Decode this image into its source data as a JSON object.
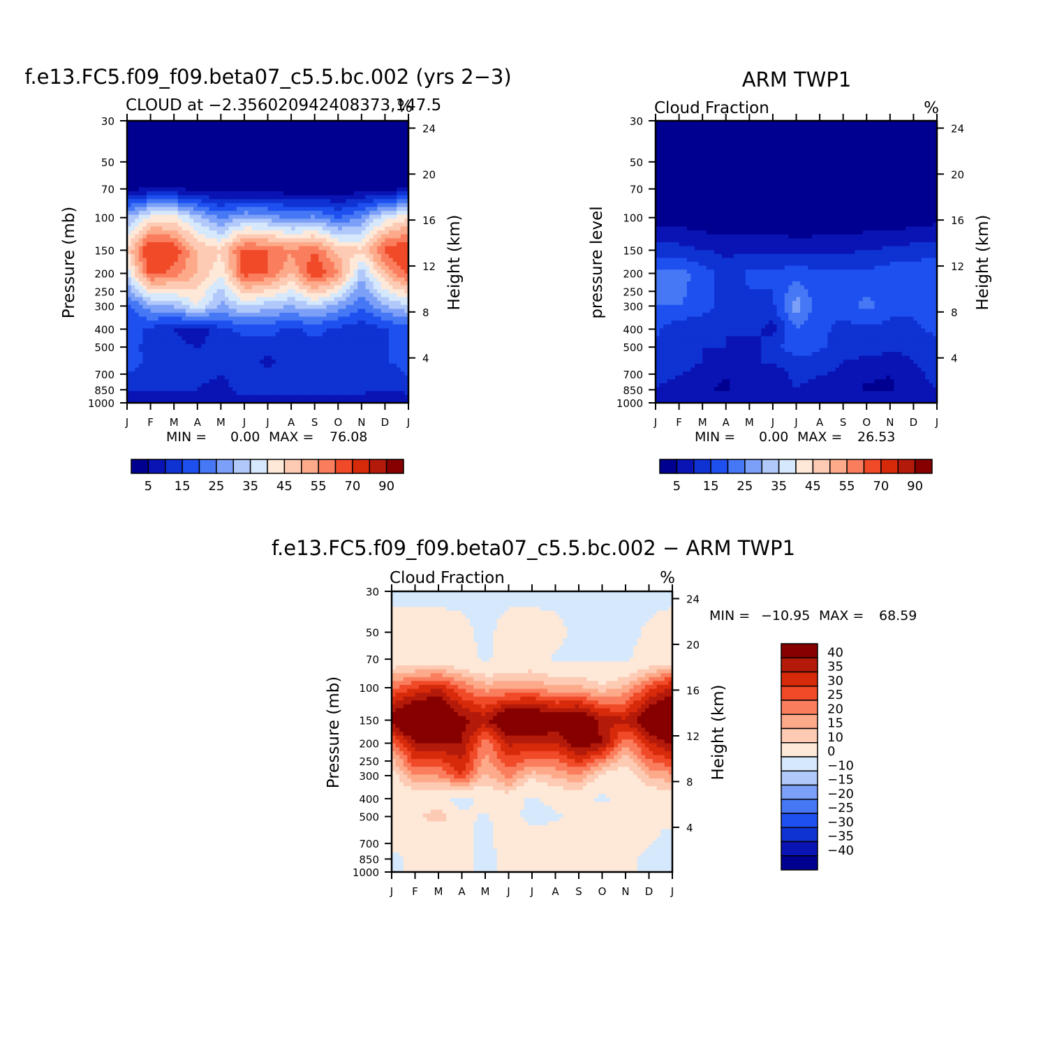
{
  "chart_data": [
    {
      "type": "heatmap",
      "panel": "model",
      "title": "f.e13.FC5.f09_f09.beta07_c5.5.bc.002 (yrs 2−3)",
      "subtitle": "CLOUD at −2.356020942408373,147.5",
      "units": "%",
      "ylabel": "Pressure (mb)",
      "ylabel_right": "Height (km)",
      "x": [
        "J",
        "F",
        "M",
        "A",
        "M",
        "J",
        "J",
        "A",
        "S",
        "O",
        "N",
        "D",
        "J"
      ],
      "y_ticks": [
        "30",
        "50",
        "70",
        "100",
        "150",
        "200",
        "250",
        "300",
        "400",
        "500",
        "700",
        "850",
        "1000"
      ],
      "y_right_ticks": [
        "24",
        "20",
        "16",
        "12",
        "8",
        "4"
      ],
      "y_levels_mb": [
        30,
        70,
        100,
        150,
        200,
        300,
        400,
        500,
        600,
        850,
        1000
      ],
      "values": [
        [
          0,
          0,
          0,
          0,
          0,
          0,
          0,
          0,
          0,
          0,
          0,
          0,
          0
        ],
        [
          4,
          5,
          5,
          4,
          2,
          2,
          2,
          1,
          1,
          1,
          2,
          4,
          5
        ],
        [
          30,
          42,
          42,
          32,
          24,
          30,
          28,
          24,
          26,
          20,
          26,
          38,
          44
        ],
        [
          45,
          68,
          64,
          50,
          46,
          62,
          60,
          56,
          60,
          48,
          46,
          62,
          66
        ],
        [
          36,
          62,
          58,
          50,
          40,
          62,
          60,
          50,
          65,
          56,
          32,
          50,
          62
        ],
        [
          18,
          28,
          30,
          40,
          28,
          36,
          32,
          30,
          34,
          28,
          20,
          30,
          34
        ],
        [
          18,
          14,
          10,
          6,
          14,
          16,
          16,
          14,
          16,
          14,
          12,
          14,
          18
        ],
        [
          16,
          14,
          12,
          10,
          12,
          14,
          14,
          14,
          14,
          14,
          10,
          14,
          18
        ],
        [
          18,
          14,
          14,
          14,
          14,
          14,
          8,
          14,
          14,
          14,
          14,
          14,
          18
        ],
        [
          10,
          10,
          10,
          10,
          6,
          14,
          14,
          14,
          12,
          12,
          12,
          10,
          12
        ],
        [
          5,
          5,
          5,
          5,
          5,
          5,
          5,
          5,
          5,
          5,
          5,
          5,
          5
        ]
      ],
      "min_label": "MIN =",
      "min_value": "0.00",
      "max_label": "MAX =",
      "max_value": "76.08"
    },
    {
      "type": "heatmap",
      "panel": "obs",
      "title": "ARM TWP1",
      "subtitle": "Cloud Fraction",
      "units": "%",
      "ylabel": "pressure level",
      "ylabel_right": "Height (km)",
      "x": [
        "J",
        "F",
        "M",
        "A",
        "M",
        "J",
        "J",
        "A",
        "S",
        "O",
        "N",
        "D",
        "J"
      ],
      "y_ticks": [
        "30",
        "50",
        "70",
        "100",
        "150",
        "200",
        "250",
        "300",
        "400",
        "500",
        "700",
        "850",
        "1000"
      ],
      "y_right_ticks": [
        "24",
        "20",
        "16",
        "12",
        "8",
        "4"
      ],
      "y_levels_mb": [
        30,
        70,
        100,
        150,
        200,
        300,
        400,
        500,
        600,
        850,
        1000
      ],
      "values": [
        [
          0,
          0,
          0,
          0,
          0,
          0,
          0,
          0,
          0,
          0,
          0,
          0,
          0
        ],
        [
          0,
          0,
          0,
          0,
          0,
          0,
          0,
          0,
          0,
          0,
          0,
          0,
          0
        ],
        [
          3,
          2,
          1,
          1,
          1,
          1,
          0,
          0,
          0,
          1,
          1,
          2,
          3
        ],
        [
          12,
          12,
          10,
          9,
          9,
          9,
          8,
          9,
          9,
          10,
          11,
          12,
          13
        ],
        [
          22,
          22,
          18,
          12,
          16,
          16,
          18,
          16,
          16,
          16,
          18,
          18,
          20
        ],
        [
          20,
          20,
          18,
          12,
          14,
          14,
          28,
          16,
          16,
          22,
          16,
          16,
          20
        ],
        [
          16,
          12,
          10,
          10,
          12,
          8,
          20,
          16,
          14,
          14,
          14,
          14,
          16
        ],
        [
          14,
          12,
          10,
          10,
          8,
          12,
          20,
          16,
          12,
          14,
          12,
          12,
          14
        ],
        [
          12,
          12,
          10,
          6,
          10,
          10,
          12,
          12,
          10,
          8,
          6,
          10,
          12
        ],
        [
          10,
          8,
          6,
          4,
          8,
          6,
          10,
          8,
          8,
          4,
          4,
          8,
          10
        ],
        [
          8,
          8,
          8,
          8,
          8,
          8,
          8,
          8,
          8,
          8,
          8,
          8,
          8
        ]
      ],
      "min_label": "MIN =",
      "min_value": "0.00",
      "max_label": "MAX =",
      "max_value": "26.53"
    },
    {
      "type": "heatmap",
      "panel": "diff",
      "title": "f.e13.FC5.f09_f09.beta07_c5.5.bc.002 − ARM TWP1",
      "subtitle": "Cloud Fraction",
      "units": "%",
      "ylabel": "Pressure (mb)",
      "ylabel_right": "Height (km)",
      "x": [
        "J",
        "F",
        "M",
        "A",
        "M",
        "J",
        "J",
        "A",
        "S",
        "O",
        "N",
        "D",
        "J"
      ],
      "y_ticks": [
        "30",
        "50",
        "70",
        "100",
        "150",
        "200",
        "250",
        "300",
        "400",
        "500",
        "700",
        "850",
        "1000"
      ],
      "y_right_ticks": [
        "24",
        "20",
        "16",
        "12",
        "8",
        "4"
      ],
      "y_levels_mb": [
        30,
        50,
        70,
        100,
        150,
        200,
        300,
        400,
        500,
        600,
        850,
        1000
      ],
      "values": [
        [
          -2,
          -2,
          -2,
          -2,
          -2,
          -2,
          -2,
          -2,
          -2,
          -2,
          -2,
          -2,
          -2
        ],
        [
          3,
          3,
          3,
          2,
          -2,
          3,
          3,
          2,
          -2,
          -2,
          -2,
          1,
          3
        ],
        [
          4,
          4,
          4,
          3,
          -1,
          2,
          3,
          -1,
          -1,
          -2,
          -1,
          3,
          5
        ],
        [
          24,
          30,
          34,
          24,
          18,
          18,
          20,
          16,
          16,
          12,
          16,
          28,
          36
        ],
        [
          44,
          56,
          56,
          42,
          38,
          52,
          52,
          46,
          50,
          38,
          36,
          48,
          54
        ],
        [
          22,
          40,
          40,
          40,
          22,
          36,
          36,
          34,
          44,
          40,
          20,
          34,
          42
        ],
        [
          6,
          20,
          20,
          30,
          14,
          22,
          12,
          16,
          20,
          8,
          4,
          16,
          18
        ],
        [
          4,
          4,
          2,
          -4,
          4,
          6,
          -2,
          4,
          4,
          -2,
          4,
          4,
          6
        ],
        [
          6,
          8,
          16,
          2,
          -1,
          4,
          -4,
          -2,
          4,
          4,
          4,
          4,
          6
        ],
        [
          4,
          4,
          2,
          2,
          -2,
          4,
          2,
          4,
          4,
          4,
          4,
          2,
          -2
        ],
        [
          -2,
          2,
          2,
          2,
          -2,
          2,
          2,
          2,
          2,
          2,
          2,
          -2,
          -2
        ],
        [
          -2,
          2,
          2,
          2,
          -2,
          2,
          2,
          2,
          2,
          2,
          2,
          -2,
          -2
        ]
      ],
      "min_label": "MIN =",
      "min_value": "−10.95",
      "max_label": "MAX =",
      "max_value": "68.59"
    }
  ],
  "colorbars": {
    "abs": {
      "labels": [
        "5",
        "15",
        "25",
        "35",
        "45",
        "55",
        "70",
        "90"
      ],
      "bounds": [
        5,
        10,
        15,
        20,
        25,
        30,
        35,
        40,
        45,
        50,
        55,
        60,
        70,
        80,
        90
      ],
      "colors": [
        "#000090",
        "#0a14b4",
        "#0f32d2",
        "#1e50f0",
        "#4678f5",
        "#7ca0f7",
        "#b0c8fa",
        "#d6e8fc",
        "#fee8d8",
        "#fdcab4",
        "#fcaa8a",
        "#fa7e5e",
        "#f04a28",
        "#d72a0a",
        "#b41a0a",
        "#870000"
      ]
    },
    "diff": {
      "labels": [
        "40",
        "35",
        "30",
        "25",
        "20",
        "15",
        "10",
        "0",
        "−10",
        "−15",
        "−20",
        "−25",
        "−30",
        "−35",
        "−40"
      ],
      "bounds": [
        -40,
        -35,
        -30,
        -25,
        -20,
        -15,
        -10,
        0,
        10,
        15,
        20,
        25,
        30,
        35,
        40
      ],
      "colors": [
        "#000090",
        "#0a14b4",
        "#0f32d2",
        "#1e50f0",
        "#4678f5",
        "#7ca0f7",
        "#b0c8fa",
        "#d6e8fc",
        "#fee8d8",
        "#fdcab4",
        "#fcaa8a",
        "#fa7e5e",
        "#f04a28",
        "#d72a0a",
        "#b41a0a",
        "#870000"
      ]
    }
  }
}
